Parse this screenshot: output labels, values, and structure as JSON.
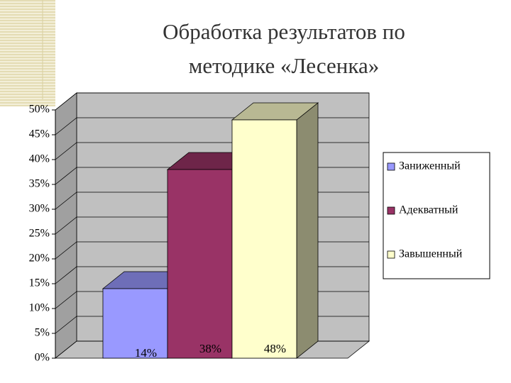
{
  "chart_data": {
    "type": "bar3d",
    "title": [
      "Обработка результатов по",
      "методике «Лесенка»"
    ],
    "series": [
      {
        "name": "Заниженный",
        "color": "#9999ff",
        "values": [
          14
        ],
        "value_labels": [
          "14%"
        ]
      },
      {
        "name": "Адекватный",
        "color": "#993366",
        "values": [
          38
        ],
        "value_labels": [
          "38%"
        ]
      },
      {
        "name": "Завышенный",
        "color": "#ffffcc",
        "values": [
          48
        ],
        "value_labels": [
          "48%"
        ]
      }
    ],
    "ylim": [
      0,
      50
    ],
    "yticks": [
      {
        "value": 0,
        "label": "0%"
      },
      {
        "value": 5,
        "label": "5%"
      },
      {
        "value": 10,
        "label": "10%"
      },
      {
        "value": 15,
        "label": "15%"
      },
      {
        "value": 20,
        "label": "20%"
      },
      {
        "value": 25,
        "label": "25%"
      },
      {
        "value": 30,
        "label": "30%"
      },
      {
        "value": 35,
        "label": "35%"
      },
      {
        "value": 40,
        "label": "40%"
      },
      {
        "value": 45,
        "label": "45%"
      },
      {
        "value": 50,
        "label": "50%"
      }
    ],
    "grid": true,
    "legend": "right"
  }
}
